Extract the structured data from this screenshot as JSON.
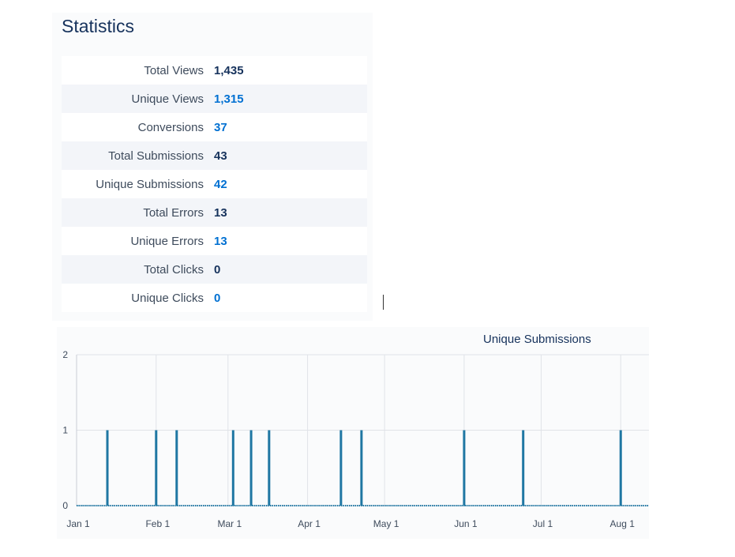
{
  "statistics": {
    "title": "Statistics",
    "rows": [
      {
        "label": "Total Views",
        "value": "1,435",
        "link": false
      },
      {
        "label": "Unique Views",
        "value": "1,315",
        "link": true
      },
      {
        "label": "Conversions",
        "value": "37",
        "link": true
      },
      {
        "label": "Total Submissions",
        "value": "43",
        "link": false
      },
      {
        "label": "Unique Submissions",
        "value": "42",
        "link": true
      },
      {
        "label": "Total Errors",
        "value": "13",
        "link": false
      },
      {
        "label": "Unique Errors",
        "value": "13",
        "link": true
      },
      {
        "label": "Total Clicks",
        "value": "0",
        "link": false
      },
      {
        "label": "Unique Clicks",
        "value": "0",
        "link": true
      }
    ]
  },
  "colors": {
    "link": "#0070d2",
    "text": "#16325c",
    "bar": "#1f77a3",
    "grid": "#e0e3e8"
  },
  "chart_data": {
    "type": "bar",
    "title": "Unique Submissions",
    "xlabel": "",
    "ylabel": "",
    "ylim": [
      0,
      2
    ],
    "yticks": [
      "0",
      "1",
      "2"
    ],
    "grid": true,
    "x_ticks": [
      {
        "label": "Jan 1",
        "date": "01-01"
      },
      {
        "label": "Feb 1",
        "date": "02-01"
      },
      {
        "label": "Mar 1",
        "date": "03-01"
      },
      {
        "label": "Apr 1",
        "date": "04-01"
      },
      {
        "label": "May 1",
        "date": "05-01"
      },
      {
        "label": "Jun 1",
        "date": "06-01"
      },
      {
        "label": "Jul 1",
        "date": "07-01"
      },
      {
        "label": "Aug 1",
        "date": "08-01"
      }
    ],
    "x_range": [
      "01-01",
      "08-12"
    ],
    "points": [
      {
        "date": "01-13",
        "value": 1
      },
      {
        "date": "02-01",
        "value": 1
      },
      {
        "date": "02-09",
        "value": 1
      },
      {
        "date": "03-03",
        "value": 1
      },
      {
        "date": "03-10",
        "value": 1
      },
      {
        "date": "03-17",
        "value": 1
      },
      {
        "date": "04-14",
        "value": 1
      },
      {
        "date": "04-22",
        "value": 1
      },
      {
        "date": "06-01",
        "value": 1
      },
      {
        "date": "06-24",
        "value": 1
      },
      {
        "date": "08-01",
        "value": 1
      }
    ]
  }
}
